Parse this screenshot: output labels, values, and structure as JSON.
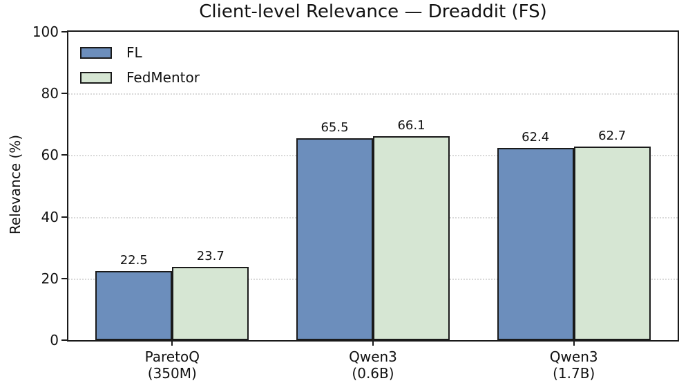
{
  "chart_data": {
    "type": "bar",
    "title": "Client-level Relevance — Dreaddit (FS)",
    "categories": [
      [
        "ParetoQ",
        "(350M)"
      ],
      [
        "Qwen3",
        "(0.6B)"
      ],
      [
        "Qwen3",
        "(1.7B)"
      ]
    ],
    "series": [
      {
        "name": "FL",
        "color": "#6c8ebc",
        "values": [
          22.5,
          65.5,
          62.4
        ]
      },
      {
        "name": "FedMentor",
        "color": "#d6e6d3",
        "values": [
          23.7,
          66.1,
          62.7
        ]
      }
    ],
    "xlabel": "",
    "ylabel": "Relevance (%)",
    "ylim": [
      0,
      100
    ],
    "yticks": [
      0,
      20,
      40,
      60,
      80,
      100
    ],
    "grid": "horizontal-dotted",
    "grid_color": "#d9d9d9",
    "bar_edge_color": "#1a1a1a",
    "show_value_labels": true,
    "value_label_format": "0.1f",
    "legend": {
      "position": "upper-left",
      "frame": false,
      "entries": [
        "FL",
        "FedMentor"
      ]
    }
  }
}
